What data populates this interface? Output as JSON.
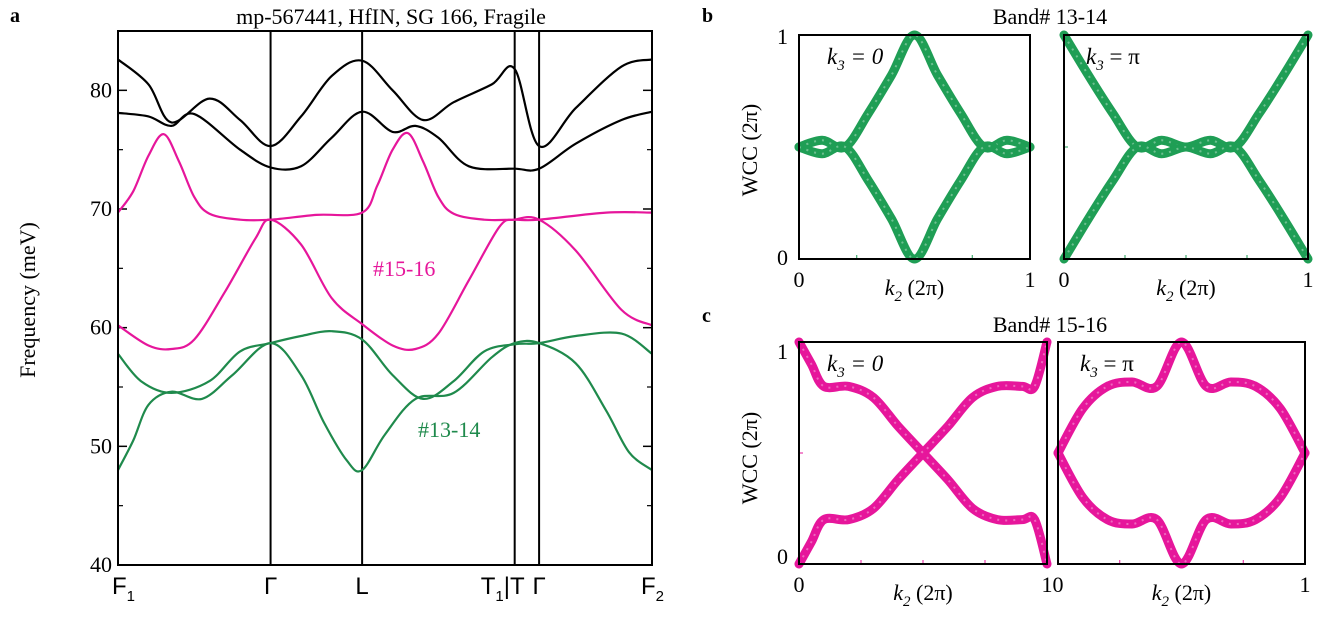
{
  "panels": {
    "a": {
      "letter": "a",
      "title": "mp-567441, HfIN, SG 166, Fragile",
      "ylabel": "Frequency (meV)",
      "yticks": [
        "40",
        "50",
        "60",
        "70",
        "80"
      ],
      "kpoints": [
        {
          "main": "F",
          "sub": "1"
        },
        {
          "main": "Γ",
          "sub": ""
        },
        {
          "main": "L",
          "sub": ""
        },
        {
          "main": "T",
          "sub": "1",
          "tail": "|T"
        },
        {
          "main": "Γ",
          "sub": ""
        },
        {
          "main": "F",
          "sub": "2"
        }
      ],
      "labels": {
        "upper": "#15-16",
        "lower": "#13-14"
      }
    },
    "b": {
      "letter": "b",
      "title": "Band# 13-14"
    },
    "c": {
      "letter": "c",
      "title": "Band# 15-16"
    },
    "wcc": {
      "ylabel": "WCC (2π)",
      "xlabel_main": "k",
      "xlabel_sub": "2",
      "xlabel_unit": " (2π)",
      "ticks": {
        "zero": "0",
        "one": "1"
      },
      "k3_sym": "k",
      "k3_sub": "3",
      "k3_zero": "= 0",
      "k3_pi": "= π"
    }
  },
  "colors": {
    "black": "#000000",
    "magenta": "#e6169b",
    "green": "#1f8a4c",
    "wcc_green": "#1f9e55",
    "wcc_magenta": "#e6169b"
  },
  "chart_data": [
    {
      "type": "line",
      "title": "mp-567441, HfIN, SG 166, Fragile",
      "xlabel": "",
      "ylabel": "Frequency (meV)",
      "ylim": [
        40,
        85
      ],
      "x_ticks": [
        "F1",
        "Γ",
        "L",
        "T1|T",
        "Γ",
        "F2"
      ],
      "x_positions": [
        0,
        1,
        1.6,
        2.6,
        2.76,
        3.5
      ],
      "series": [
        {
          "name": "",
          "color": "black",
          "x": [
            0,
            0.2,
            0.35,
            0.6,
            0.8,
            1.0,
            1.2,
            1.4,
            1.6,
            1.8,
            2.0,
            2.2,
            2.45,
            2.6,
            2.76,
            3.0,
            3.3,
            3.5
          ],
          "values": [
            82.6,
            80.5,
            77.3,
            79.3,
            77.5,
            75.3,
            77.8,
            81.2,
            82.5,
            80.0,
            77.5,
            79.0,
            80.5,
            81.8,
            75.3,
            78.5,
            82.0,
            82.6
          ]
        },
        {
          "name": "",
          "color": "black",
          "x": [
            0,
            0.2,
            0.35,
            0.5,
            0.8,
            1.0,
            1.2,
            1.4,
            1.6,
            1.8,
            1.95,
            2.1,
            2.3,
            2.6,
            2.76,
            3.0,
            3.3,
            3.5
          ],
          "values": [
            78.1,
            77.8,
            77.0,
            78.0,
            75.0,
            73.5,
            73.6,
            76.0,
            78.2,
            76.5,
            77.0,
            76.0,
            73.6,
            73.4,
            73.4,
            75.5,
            77.5,
            78.2
          ]
        },
        {
          "name": "#15-16",
          "color": "magenta",
          "x": [
            0,
            0.1,
            0.2,
            0.3,
            0.4,
            0.5,
            0.6,
            0.8,
            1.0,
            1.3,
            1.6,
            1.7,
            1.8,
            1.9,
            2.0,
            2.1,
            2.2,
            2.4,
            2.6,
            2.76,
            3.2,
            3.5
          ],
          "values": [
            69.7,
            71.5,
            74.5,
            76.3,
            74.0,
            71.0,
            69.6,
            69.1,
            69.1,
            69.5,
            69.7,
            72.0,
            75.0,
            76.4,
            74.0,
            71.0,
            69.6,
            69.1,
            69.1,
            69.1,
            69.7,
            69.7
          ]
        },
        {
          "name": "#15-16",
          "color": "magenta",
          "x": [
            0,
            0.2,
            0.35,
            0.5,
            0.7,
            0.9,
            1.0,
            1.2,
            1.4,
            1.6,
            1.8,
            1.95,
            2.1,
            2.3,
            2.5,
            2.6,
            2.76,
            3.0,
            3.3,
            3.5
          ],
          "values": [
            60.2,
            58.5,
            58.2,
            59.0,
            63.0,
            67.5,
            69.1,
            67.0,
            62.5,
            60.3,
            58.5,
            58.2,
            59.5,
            64.0,
            68.5,
            69.1,
            69.1,
            66.5,
            61.5,
            60.2
          ]
        },
        {
          "name": "#13-14",
          "color": "green",
          "x": [
            0,
            0.15,
            0.35,
            0.6,
            0.8,
            1.0,
            1.2,
            1.4,
            1.6,
            1.8,
            2.0,
            2.2,
            2.4,
            2.6,
            2.76,
            3.0,
            3.3,
            3.5
          ],
          "values": [
            57.8,
            55.5,
            54.5,
            55.5,
            58.0,
            58.7,
            59.3,
            59.7,
            59.0,
            56.0,
            54.0,
            55.5,
            58.0,
            58.6,
            58.7,
            59.3,
            59.5,
            57.8
          ]
        },
        {
          "name": "#13-14",
          "color": "green",
          "x": [
            0,
            0.1,
            0.2,
            0.35,
            0.55,
            0.75,
            1.0,
            1.2,
            1.35,
            1.5,
            1.6,
            1.75,
            1.95,
            2.2,
            2.45,
            2.6,
            2.76,
            3.0,
            3.2,
            3.35,
            3.5
          ],
          "values": [
            48.0,
            50.5,
            53.5,
            54.6,
            54.0,
            56.0,
            58.7,
            56.0,
            52.0,
            48.8,
            48.0,
            51.0,
            54.0,
            54.5,
            57.5,
            58.7,
            58.7,
            57.0,
            53.0,
            49.5,
            48.0
          ]
        }
      ]
    },
    {
      "type": "scatter",
      "title": "Band# 13-14",
      "subplot": "k3 = 0",
      "xlabel": "k2 (2π)",
      "ylabel": "WCC (2π)",
      "xlim": [
        0,
        1
      ],
      "ylim": [
        0,
        1
      ],
      "series": [
        {
          "name": "",
          "x": [
            0,
            0.1,
            0.2,
            0.3,
            0.4,
            0.5,
            0.6,
            0.7,
            0.8,
            0.9,
            1.0
          ],
          "values": [
            0.5,
            0.53,
            0.5,
            0.65,
            0.82,
            1.0,
            0.82,
            0.65,
            0.5,
            0.53,
            0.5
          ]
        },
        {
          "name": "",
          "x": [
            0,
            0.1,
            0.2,
            0.3,
            0.4,
            0.5,
            0.6,
            0.7,
            0.8,
            0.9,
            1.0
          ],
          "values": [
            0.5,
            0.47,
            0.5,
            0.35,
            0.18,
            0.0,
            0.18,
            0.35,
            0.5,
            0.47,
            0.5
          ]
        }
      ]
    },
    {
      "type": "scatter",
      "title": "Band# 13-14",
      "subplot": "k3 = π",
      "xlabel": "k2 (2π)",
      "ylabel": "WCC (2π)",
      "xlim": [
        0,
        1
      ],
      "ylim": [
        0,
        1
      ],
      "series": [
        {
          "name": "",
          "x": [
            0,
            0.1,
            0.2,
            0.3,
            0.4,
            0.5,
            0.6,
            0.7,
            0.8,
            0.9,
            1.0
          ],
          "values": [
            1.0,
            0.82,
            0.65,
            0.5,
            0.53,
            0.5,
            0.53,
            0.5,
            0.65,
            0.82,
            1.0
          ]
        },
        {
          "name": "",
          "x": [
            0,
            0.1,
            0.2,
            0.3,
            0.4,
            0.5,
            0.6,
            0.7,
            0.8,
            0.9,
            1.0
          ],
          "values": [
            0.0,
            0.18,
            0.35,
            0.5,
            0.47,
            0.5,
            0.47,
            0.5,
            0.35,
            0.18,
            0.0
          ]
        }
      ]
    },
    {
      "type": "scatter",
      "title": "Band# 15-16",
      "subplot": "k3 = 0",
      "xlabel": "k2 (2π)",
      "ylabel": "WCC (2π)",
      "xlim": [
        0,
        1
      ],
      "ylim": [
        0,
        1
      ],
      "series": [
        {
          "name": "",
          "x": [
            0,
            0.05,
            0.1,
            0.2,
            0.3,
            0.4,
            0.5,
            0.6,
            0.7,
            0.8,
            0.9,
            0.95,
            1.0
          ],
          "values": [
            0.0,
            0.1,
            0.2,
            0.2,
            0.25,
            0.38,
            0.5,
            0.62,
            0.75,
            0.8,
            0.8,
            0.8,
            1.0
          ]
        },
        {
          "name": "",
          "x": [
            0,
            0.05,
            0.1,
            0.2,
            0.3,
            0.4,
            0.5,
            0.6,
            0.7,
            0.8,
            0.9,
            0.95,
            1.0
          ],
          "values": [
            1.0,
            0.9,
            0.8,
            0.8,
            0.75,
            0.62,
            0.5,
            0.38,
            0.25,
            0.2,
            0.2,
            0.2,
            0.0
          ]
        }
      ]
    },
    {
      "type": "scatter",
      "title": "Band# 15-16",
      "subplot": "k3 = π",
      "xlabel": "k2 (2π)",
      "ylabel": "WCC (2π)",
      "xlim": [
        0,
        1
      ],
      "ylim": [
        0,
        1
      ],
      "series": [
        {
          "name": "",
          "x": [
            0,
            0.1,
            0.2,
            0.3,
            0.4,
            0.5,
            0.6,
            0.7,
            0.8,
            0.9,
            1.0
          ],
          "values": [
            0.5,
            0.7,
            0.8,
            0.82,
            0.8,
            1.0,
            0.8,
            0.82,
            0.8,
            0.7,
            0.5
          ]
        },
        {
          "name": "",
          "x": [
            0,
            0.1,
            0.2,
            0.3,
            0.4,
            0.5,
            0.6,
            0.7,
            0.8,
            0.9,
            1.0
          ],
          "values": [
            0.5,
            0.3,
            0.2,
            0.18,
            0.2,
            0.0,
            0.2,
            0.18,
            0.2,
            0.3,
            0.5
          ]
        }
      ]
    }
  ]
}
